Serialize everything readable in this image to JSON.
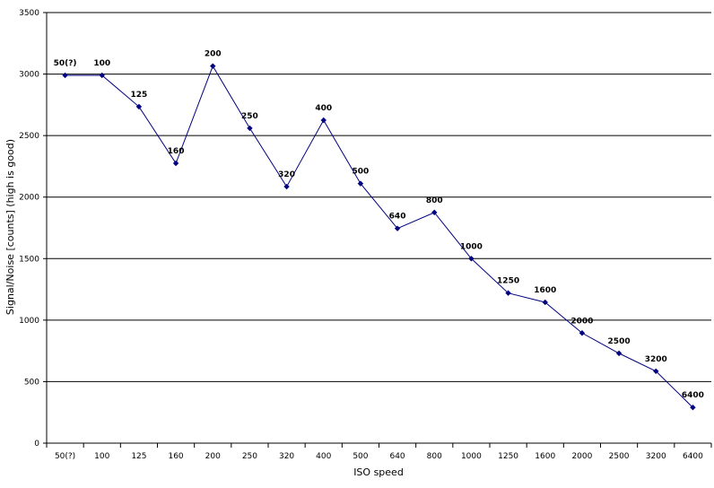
{
  "chart_data": {
    "type": "line",
    "title": "",
    "xlabel": "ISO speed",
    "ylabel": "Signal/Noise [counts] (high is good)",
    "ylim": [
      0,
      3500
    ],
    "yticks": [
      0,
      500,
      1000,
      1500,
      2000,
      2500,
      3000,
      3500
    ],
    "grid": "horizontal",
    "legend": "none",
    "categories": [
      "50(?)",
      "100",
      "125",
      "160",
      "200",
      "250",
      "320",
      "400",
      "500",
      "640",
      "800",
      "1000",
      "1250",
      "1600",
      "2000",
      "2500",
      "3200",
      "6400"
    ],
    "series": [
      {
        "values": [
          2990,
          2990,
          2735,
          2275,
          3065,
          2560,
          2085,
          2625,
          2110,
          1745,
          1875,
          1500,
          1220,
          1145,
          895,
          730,
          585,
          290
        ],
        "data_labels": [
          "50(?)",
          "100",
          "125",
          "160",
          "200",
          "250",
          "320",
          "400",
          "500",
          "640",
          "800",
          "1000",
          "1250",
          "1600",
          "2000",
          "2500",
          "3200",
          "6400"
        ],
        "color": "#000080"
      }
    ],
    "colors": {
      "line": "#000080",
      "marker": "#000080",
      "grid": "#000000",
      "axis": "#000000"
    }
  }
}
